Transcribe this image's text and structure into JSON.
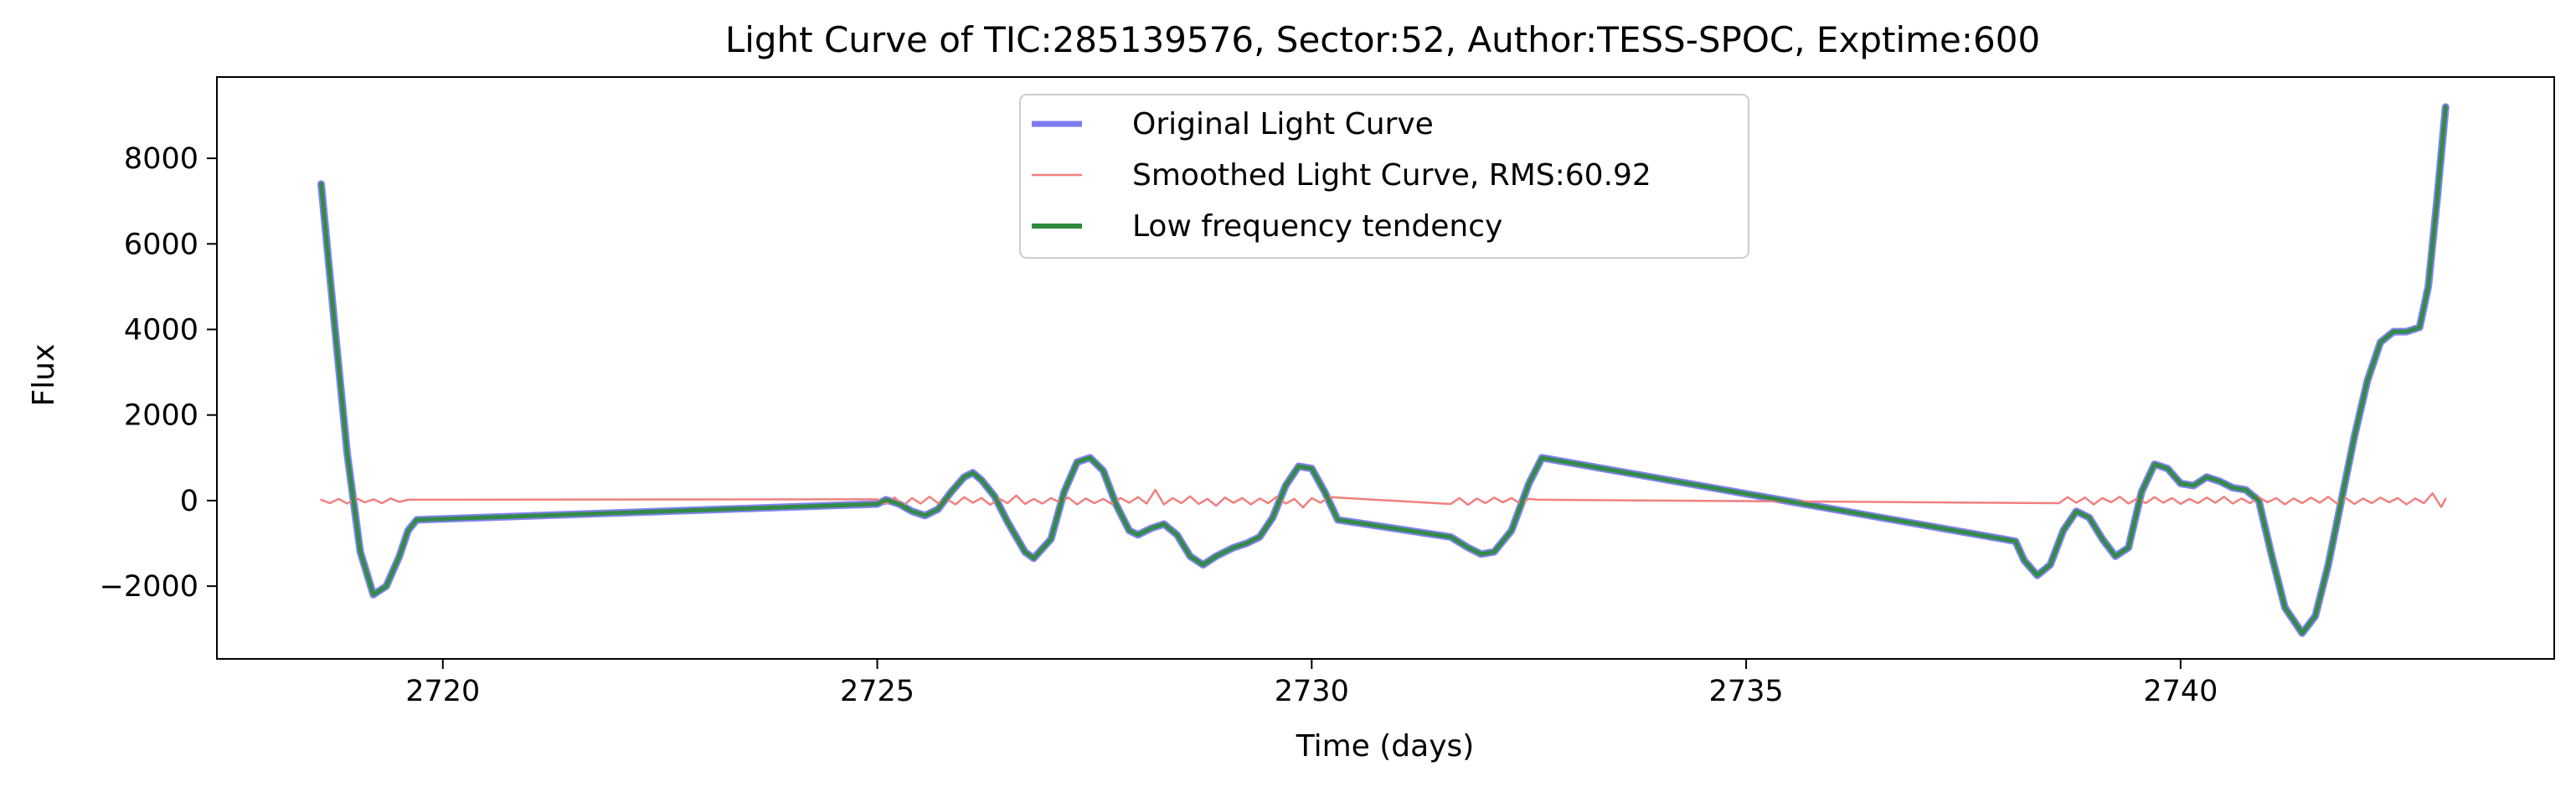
{
  "chart_data": {
    "type": "line",
    "title": "Light Curve of TIC:285139576, Sector:52, Author:TESS-SPOC, Exptime:600",
    "xlabel": "Time (days)",
    "ylabel": "Flux",
    "xlim": [
      2717.4,
      2744.3
    ],
    "ylim": [
      -3700,
      9900
    ],
    "xticks": [
      2720,
      2725,
      2730,
      2735,
      2740
    ],
    "yticks": [
      -2000,
      0,
      2000,
      4000,
      6000,
      8000
    ],
    "xtick_labels": [
      "2720",
      "2725",
      "2730",
      "2735",
      "2740"
    ],
    "ytick_labels": [
      "−2000",
      "0",
      "2000",
      "4000",
      "6000",
      "8000"
    ],
    "grid": false,
    "legend_position": "top-center",
    "series": [
      {
        "name": "Original Light Curve",
        "color": "#7b7bf0",
        "points": [
          [
            2718.6,
            7400
          ],
          [
            2718.75,
            4200
          ],
          [
            2718.9,
            1100
          ],
          [
            2719.05,
            -1200
          ],
          [
            2719.2,
            -2200
          ],
          [
            2719.35,
            -2000
          ],
          [
            2719.5,
            -1300
          ],
          [
            2719.6,
            -700
          ],
          [
            2719.7,
            -450
          ],
          [
            2725.0,
            -80
          ],
          [
            2725.1,
            20
          ],
          [
            2725.25,
            -80
          ],
          [
            2725.4,
            -250
          ],
          [
            2725.55,
            -350
          ],
          [
            2725.7,
            -200
          ],
          [
            2725.85,
            200
          ],
          [
            2726.0,
            550
          ],
          [
            2726.1,
            650
          ],
          [
            2726.2,
            480
          ],
          [
            2726.35,
            100
          ],
          [
            2726.5,
            -500
          ],
          [
            2726.7,
            -1200
          ],
          [
            2726.8,
            -1350
          ],
          [
            2727.0,
            -900
          ],
          [
            2727.15,
            200
          ],
          [
            2727.3,
            900
          ],
          [
            2727.45,
            1000
          ],
          [
            2727.6,
            700
          ],
          [
            2727.75,
            -100
          ],
          [
            2727.9,
            -700
          ],
          [
            2728.0,
            -800
          ],
          [
            2728.15,
            -650
          ],
          [
            2728.3,
            -550
          ],
          [
            2728.45,
            -800
          ],
          [
            2728.6,
            -1300
          ],
          [
            2728.75,
            -1500
          ],
          [
            2728.9,
            -1300
          ],
          [
            2729.1,
            -1100
          ],
          [
            2729.25,
            -1000
          ],
          [
            2729.4,
            -850
          ],
          [
            2729.55,
            -400
          ],
          [
            2729.7,
            350
          ],
          [
            2729.85,
            800
          ],
          [
            2730.0,
            750
          ],
          [
            2730.15,
            200
          ],
          [
            2730.3,
            -450
          ],
          [
            2731.6,
            -850
          ],
          [
            2731.8,
            -1100
          ],
          [
            2731.95,
            -1250
          ],
          [
            2732.1,
            -1200
          ],
          [
            2732.3,
            -700
          ],
          [
            2732.5,
            400
          ],
          [
            2732.65,
            1000
          ],
          [
            2738.1,
            -950
          ],
          [
            2738.2,
            -1400
          ],
          [
            2738.35,
            -1750
          ],
          [
            2738.5,
            -1500
          ],
          [
            2738.65,
            -700
          ],
          [
            2738.8,
            -250
          ],
          [
            2738.95,
            -400
          ],
          [
            2739.1,
            -900
          ],
          [
            2739.25,
            -1300
          ],
          [
            2739.4,
            -1100
          ],
          [
            2739.55,
            200
          ],
          [
            2739.7,
            850
          ],
          [
            2739.85,
            750
          ],
          [
            2740.0,
            400
          ],
          [
            2740.15,
            350
          ],
          [
            2740.3,
            550
          ],
          [
            2740.45,
            450
          ],
          [
            2740.6,
            300
          ],
          [
            2740.75,
            250
          ],
          [
            2740.9,
            0
          ],
          [
            2741.05,
            -1300
          ],
          [
            2741.2,
            -2500
          ],
          [
            2741.4,
            -3100
          ],
          [
            2741.55,
            -2700
          ],
          [
            2741.7,
            -1500
          ],
          [
            2741.85,
            0
          ],
          [
            2742.0,
            1500
          ],
          [
            2742.15,
            2800
          ],
          [
            2742.3,
            3700
          ],
          [
            2742.45,
            3950
          ],
          [
            2742.6,
            3950
          ],
          [
            2742.75,
            4050
          ],
          [
            2742.85,
            5000
          ],
          [
            2742.95,
            7000
          ],
          [
            2743.05,
            9200
          ]
        ]
      },
      {
        "name": "Smoothed Light Curve, RMS:60.92",
        "color": "#f08080",
        "points": [
          [
            2718.6,
            20
          ],
          [
            2718.7,
            -60
          ],
          [
            2718.8,
            40
          ],
          [
            2718.9,
            -70
          ],
          [
            2719.0,
            60
          ],
          [
            2719.1,
            -40
          ],
          [
            2719.2,
            30
          ],
          [
            2719.3,
            -60
          ],
          [
            2719.4,
            50
          ],
          [
            2719.5,
            -30
          ],
          [
            2719.6,
            20
          ],
          [
            2725.0,
            30
          ],
          [
            2725.1,
            -80
          ],
          [
            2725.2,
            70
          ],
          [
            2725.3,
            -120
          ],
          [
            2725.4,
            60
          ],
          [
            2725.5,
            -70
          ],
          [
            2725.6,
            90
          ],
          [
            2725.7,
            -60
          ],
          [
            2725.8,
            40
          ],
          [
            2725.9,
            -90
          ],
          [
            2726.0,
            80
          ],
          [
            2726.1,
            -50
          ],
          [
            2726.2,
            60
          ],
          [
            2726.3,
            -100
          ],
          [
            2726.4,
            50
          ],
          [
            2726.5,
            -60
          ],
          [
            2726.6,
            120
          ],
          [
            2726.7,
            -80
          ],
          [
            2726.8,
            40
          ],
          [
            2726.9,
            -70
          ],
          [
            2727.0,
            60
          ],
          [
            2727.1,
            -40
          ],
          [
            2727.2,
            70
          ],
          [
            2727.3,
            -90
          ],
          [
            2727.4,
            50
          ],
          [
            2727.5,
            -60
          ],
          [
            2727.6,
            40
          ],
          [
            2727.7,
            -80
          ],
          [
            2727.8,
            60
          ],
          [
            2727.9,
            -50
          ],
          [
            2728.0,
            80
          ],
          [
            2728.1,
            -70
          ],
          [
            2728.2,
            250
          ],
          [
            2728.3,
            -90
          ],
          [
            2728.4,
            60
          ],
          [
            2728.5,
            -60
          ],
          [
            2728.6,
            100
          ],
          [
            2728.7,
            -80
          ],
          [
            2728.8,
            40
          ],
          [
            2728.9,
            -120
          ],
          [
            2729.0,
            70
          ],
          [
            2729.1,
            -50
          ],
          [
            2729.2,
            60
          ],
          [
            2729.3,
            -90
          ],
          [
            2729.4,
            50
          ],
          [
            2729.5,
            -60
          ],
          [
            2729.6,
            90
          ],
          [
            2729.7,
            -70
          ],
          [
            2729.8,
            40
          ],
          [
            2729.9,
            -160
          ],
          [
            2730.0,
            60
          ],
          [
            2730.1,
            -50
          ],
          [
            2730.2,
            80
          ],
          [
            2731.6,
            -80
          ],
          [
            2731.7,
            60
          ],
          [
            2731.8,
            -100
          ],
          [
            2731.9,
            50
          ],
          [
            2732.0,
            -60
          ],
          [
            2732.1,
            70
          ],
          [
            2732.2,
            -40
          ],
          [
            2732.3,
            60
          ],
          [
            2732.4,
            -70
          ],
          [
            2732.5,
            40
          ],
          [
            2732.6,
            20
          ],
          [
            2738.6,
            -60
          ],
          [
            2738.7,
            80
          ],
          [
            2738.8,
            -50
          ],
          [
            2738.9,
            70
          ],
          [
            2739.0,
            -90
          ],
          [
            2739.1,
            60
          ],
          [
            2739.2,
            -40
          ],
          [
            2739.3,
            90
          ],
          [
            2739.4,
            -70
          ],
          [
            2739.5,
            50
          ],
          [
            2739.6,
            -60
          ],
          [
            2739.7,
            80
          ],
          [
            2739.8,
            -50
          ],
          [
            2739.9,
            60
          ],
          [
            2740.0,
            -80
          ],
          [
            2740.1,
            40
          ],
          [
            2740.2,
            -60
          ],
          [
            2740.3,
            70
          ],
          [
            2740.4,
            -50
          ],
          [
            2740.5,
            90
          ],
          [
            2740.6,
            -70
          ],
          [
            2740.7,
            50
          ],
          [
            2740.8,
            -60
          ],
          [
            2740.9,
            80
          ],
          [
            2741.0,
            -40
          ],
          [
            2741.1,
            60
          ],
          [
            2741.2,
            -90
          ],
          [
            2741.3,
            50
          ],
          [
            2741.4,
            -60
          ],
          [
            2741.5,
            70
          ],
          [
            2741.6,
            -50
          ],
          [
            2741.7,
            90
          ],
          [
            2741.8,
            -70
          ],
          [
            2741.9,
            60
          ],
          [
            2742.0,
            -80
          ],
          [
            2742.1,
            50
          ],
          [
            2742.2,
            -60
          ],
          [
            2742.3,
            70
          ],
          [
            2742.4,
            -40
          ],
          [
            2742.5,
            60
          ],
          [
            2742.6,
            -90
          ],
          [
            2742.7,
            50
          ],
          [
            2742.8,
            -60
          ],
          [
            2742.9,
            170
          ],
          [
            2743.0,
            -150
          ],
          [
            2743.05,
            40
          ]
        ]
      },
      {
        "name": "Low frequency tendency",
        "color": "#2e8b3e",
        "points": [
          [
            2718.6,
            7400
          ],
          [
            2718.75,
            4200
          ],
          [
            2718.9,
            1100
          ],
          [
            2719.05,
            -1200
          ],
          [
            2719.2,
            -2200
          ],
          [
            2719.35,
            -2000
          ],
          [
            2719.5,
            -1300
          ],
          [
            2719.6,
            -700
          ],
          [
            2719.7,
            -450
          ],
          [
            2725.0,
            -80
          ],
          [
            2725.1,
            20
          ],
          [
            2725.25,
            -80
          ],
          [
            2725.4,
            -250
          ],
          [
            2725.55,
            -350
          ],
          [
            2725.7,
            -200
          ],
          [
            2725.85,
            200
          ],
          [
            2726.0,
            550
          ],
          [
            2726.1,
            650
          ],
          [
            2726.2,
            480
          ],
          [
            2726.35,
            100
          ],
          [
            2726.5,
            -500
          ],
          [
            2726.7,
            -1200
          ],
          [
            2726.8,
            -1350
          ],
          [
            2727.0,
            -900
          ],
          [
            2727.15,
            200
          ],
          [
            2727.3,
            900
          ],
          [
            2727.45,
            1000
          ],
          [
            2727.6,
            700
          ],
          [
            2727.75,
            -100
          ],
          [
            2727.9,
            -700
          ],
          [
            2728.0,
            -800
          ],
          [
            2728.15,
            -650
          ],
          [
            2728.3,
            -550
          ],
          [
            2728.45,
            -800
          ],
          [
            2728.6,
            -1300
          ],
          [
            2728.75,
            -1500
          ],
          [
            2728.9,
            -1300
          ],
          [
            2729.1,
            -1100
          ],
          [
            2729.25,
            -1000
          ],
          [
            2729.4,
            -850
          ],
          [
            2729.55,
            -400
          ],
          [
            2729.7,
            350
          ],
          [
            2729.85,
            800
          ],
          [
            2730.0,
            750
          ],
          [
            2730.15,
            200
          ],
          [
            2730.3,
            -450
          ],
          [
            2731.6,
            -850
          ],
          [
            2731.8,
            -1100
          ],
          [
            2731.95,
            -1250
          ],
          [
            2732.1,
            -1200
          ],
          [
            2732.3,
            -700
          ],
          [
            2732.5,
            400
          ],
          [
            2732.65,
            1000
          ],
          [
            2738.1,
            -950
          ],
          [
            2738.2,
            -1400
          ],
          [
            2738.35,
            -1750
          ],
          [
            2738.5,
            -1500
          ],
          [
            2738.65,
            -700
          ],
          [
            2738.8,
            -250
          ],
          [
            2738.95,
            -400
          ],
          [
            2739.1,
            -900
          ],
          [
            2739.25,
            -1300
          ],
          [
            2739.4,
            -1100
          ],
          [
            2739.55,
            200
          ],
          [
            2739.7,
            850
          ],
          [
            2739.85,
            750
          ],
          [
            2740.0,
            400
          ],
          [
            2740.15,
            350
          ],
          [
            2740.3,
            550
          ],
          [
            2740.45,
            450
          ],
          [
            2740.6,
            300
          ],
          [
            2740.75,
            250
          ],
          [
            2740.9,
            0
          ],
          [
            2741.05,
            -1300
          ],
          [
            2741.2,
            -2500
          ],
          [
            2741.4,
            -3100
          ],
          [
            2741.55,
            -2700
          ],
          [
            2741.7,
            -1500
          ],
          [
            2741.85,
            0
          ],
          [
            2742.0,
            1500
          ],
          [
            2742.15,
            2800
          ],
          [
            2742.3,
            3700
          ],
          [
            2742.45,
            3950
          ],
          [
            2742.6,
            3950
          ],
          [
            2742.75,
            4050
          ],
          [
            2742.85,
            5000
          ],
          [
            2742.95,
            7000
          ],
          [
            2743.05,
            9200
          ]
        ]
      }
    ]
  }
}
